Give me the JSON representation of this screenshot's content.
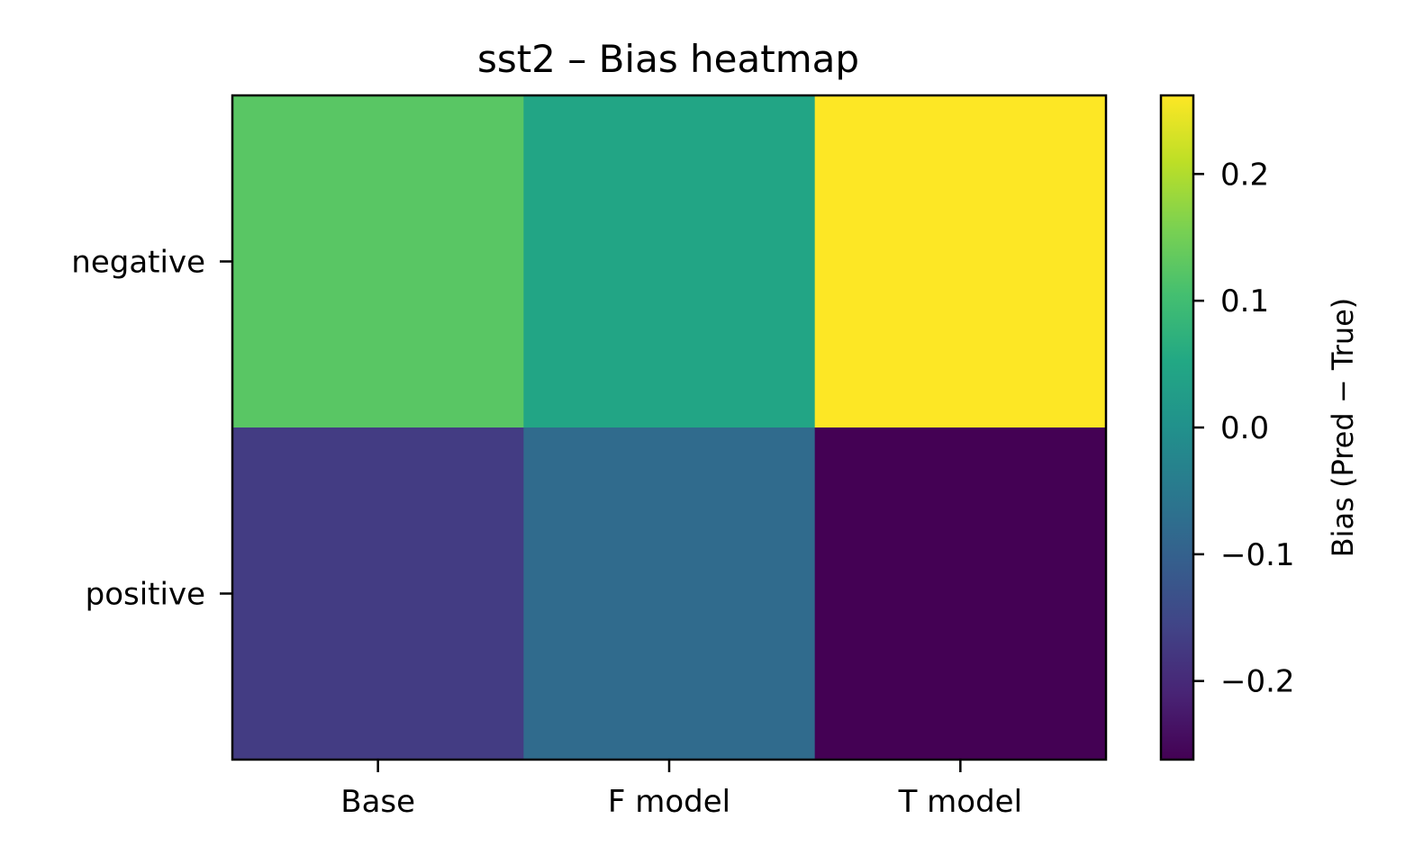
{
  "chart_data": {
    "type": "heatmap",
    "title": "sst2 – Bias heatmap",
    "x_categories": [
      "Base",
      "F model",
      "T model"
    ],
    "y_categories": [
      "negative",
      "positive"
    ],
    "values": [
      [
        0.125,
        0.045,
        0.262
      ],
      [
        -0.17,
        -0.08,
        -0.262
      ]
    ],
    "colorscale": "viridis",
    "colorbar": {
      "label": "Bias (Pred − True)",
      "range": [
        -0.262,
        0.262
      ],
      "ticks": [
        -0.2,
        -0.1,
        0.0,
        0.1,
        0.2
      ],
      "tick_labels": [
        "−0.2",
        "−0.1",
        "0.0",
        "0.1",
        "0.2"
      ]
    },
    "xlabel": "",
    "ylabel": "",
    "grid": false
  }
}
